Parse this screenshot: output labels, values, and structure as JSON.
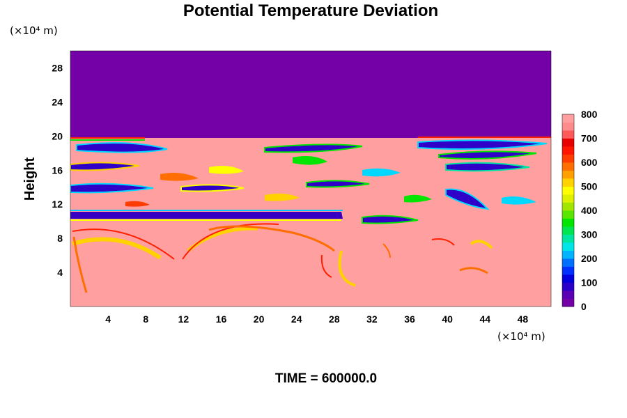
{
  "chart_data": {
    "type": "heatmap",
    "title": "Potential Temperature Deviation",
    "ylabel": "Height",
    "x_unit_label": "(×10⁴ m)",
    "y_unit_label": "(×10⁴ m)",
    "footer": "TIME = 600000.0",
    "xlim": [
      0,
      51
    ],
    "ylim": [
      0,
      30
    ],
    "xticks": [
      4,
      8,
      12,
      16,
      20,
      24,
      28,
      32,
      36,
      40,
      44,
      48
    ],
    "yticks": [
      4,
      8,
      12,
      16,
      20,
      24,
      28
    ],
    "colorbar": {
      "min": 0,
      "max": 800,
      "ticks": [
        0,
        100,
        200,
        300,
        400,
        500,
        600,
        700,
        800
      ],
      "colors": [
        "#7400a8",
        "#5a00b4",
        "#2a00c8",
        "#0000dd",
        "#0030ff",
        "#0070ff",
        "#00b4ff",
        "#00e6e6",
        "#00e6a0",
        "#00e650",
        "#00e600",
        "#5ae600",
        "#a0e600",
        "#dcf000",
        "#ffff00",
        "#ffd200",
        "#ffa000",
        "#ff6e00",
        "#ff3c00",
        "#ff1400",
        "#e60000",
        "#ff5a5a",
        "#ff8c8c",
        "#ff9f9f"
      ]
    },
    "regions": [
      {
        "name": "upper-layer",
        "y_range": [
          20,
          30
        ],
        "value": 0
      },
      {
        "name": "turbulent-band",
        "y_range": [
          11,
          20
        ],
        "value": "mixed 0-800"
      },
      {
        "name": "stable-strip",
        "y_range": [
          10.6,
          11
        ],
        "value": 0
      },
      {
        "name": "lower-layer",
        "y_range": [
          0,
          10
        ],
        "value": 800
      }
    ]
  }
}
